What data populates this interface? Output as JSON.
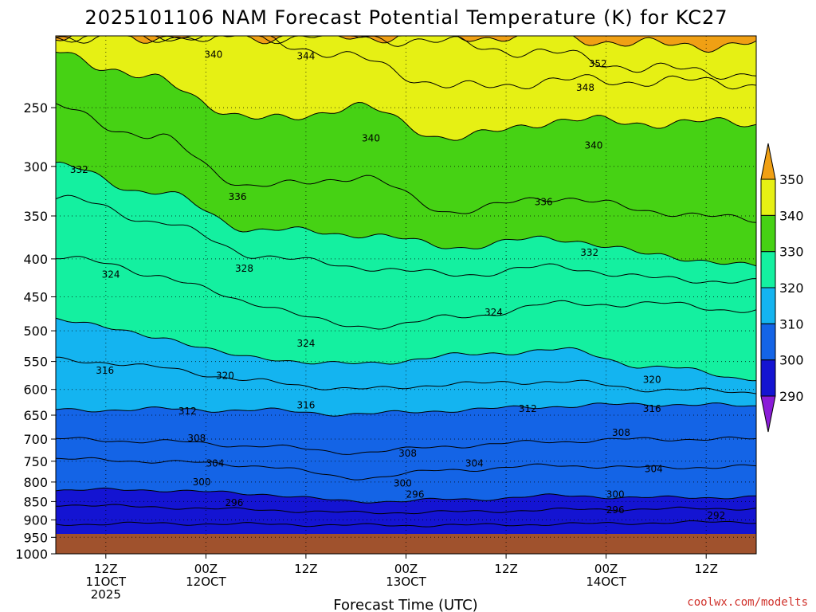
{
  "chart_data": {
    "type": "heatmap",
    "title": "2025101106 NAM Forecast Potential Temperature (K) for KC27",
    "xlabel": "Forecast Time (UTC)",
    "ylabel": "",
    "y_axis": {
      "scale": "log-pressure",
      "unit": "hPa",
      "range": [
        1000,
        200
      ],
      "ticks": [
        250,
        300,
        350,
        400,
        450,
        500,
        550,
        600,
        650,
        700,
        750,
        800,
        850,
        900,
        950,
        1000
      ]
    },
    "x_axis": {
      "unit": "hours from 2025-10-11 06Z",
      "range": [
        0,
        84
      ],
      "ticks": [
        {
          "hour": 6,
          "lines": [
            "12Z",
            "11OCT",
            "2025"
          ]
        },
        {
          "hour": 18,
          "lines": [
            "00Z",
            "12OCT"
          ]
        },
        {
          "hour": 30,
          "lines": [
            "12Z"
          ]
        },
        {
          "hour": 42,
          "lines": [
            "00Z",
            "13OCT"
          ]
        },
        {
          "hour": 54,
          "lines": [
            "12Z"
          ]
        },
        {
          "hour": 66,
          "lines": [
            "00Z",
            "14OCT"
          ]
        },
        {
          "hour": 78,
          "lines": [
            "12Z"
          ]
        }
      ]
    },
    "surface_pressure_hPa": 940,
    "colorbar": {
      "bounds": [
        290,
        300,
        310,
        320,
        330,
        340,
        350
      ],
      "tick_labels": [
        "290",
        "300",
        "310",
        "320",
        "330",
        "340",
        "350"
      ],
      "colors": [
        "#8a1cd8",
        "#1414d2",
        "#1464e6",
        "#14b4f0",
        "#14f0a0",
        "#46d214",
        "#e6f014",
        "#f0a014"
      ]
    },
    "isentrope_pressure_hPa": [
      {
        "theta": 292,
        "hours": [
          0,
          12,
          24,
          36,
          48,
          60,
          72,
          84
        ],
        "pressure": [
          912,
          910,
          912,
          915,
          915,
          912,
          908,
          905
        ]
      },
      {
        "theta": 296,
        "hours": [
          0,
          12,
          24,
          36,
          48,
          60,
          72,
          84
        ],
        "pressure": [
          858,
          865,
          872,
          880,
          878,
          872,
          870,
          868
        ]
      },
      {
        "theta": 300,
        "hours": [
          0,
          12,
          24,
          36,
          48,
          60,
          72,
          84
        ],
        "pressure": [
          820,
          820,
          830,
          850,
          845,
          835,
          840,
          838
        ]
      },
      {
        "theta": 304,
        "hours": [
          0,
          12,
          24,
          36,
          48,
          60,
          72,
          84
        ],
        "pressure": [
          745,
          750,
          760,
          790,
          770,
          760,
          765,
          762
        ]
      },
      {
        "theta": 308,
        "hours": [
          0,
          12,
          24,
          36,
          48,
          60,
          72,
          84
        ],
        "pressure": [
          700,
          705,
          715,
          730,
          715,
          705,
          700,
          700
        ]
      },
      {
        "theta": 312,
        "hours": [
          0,
          12,
          24,
          36,
          48,
          60,
          72,
          84
        ],
        "pressure": [
          640,
          638,
          640,
          648,
          640,
          632,
          628,
          632
        ]
      },
      {
        "theta": 316,
        "hours": [
          0,
          12,
          24,
          36,
          48,
          60,
          72,
          84
        ],
        "pressure": [
          545,
          560,
          585,
          600,
          590,
          585,
          600,
          605
        ]
      },
      {
        "theta": 320,
        "hours": [
          0,
          12,
          24,
          36,
          48,
          60,
          72,
          84
        ],
        "pressure": [
          480,
          510,
          545,
          555,
          540,
          530,
          560,
          580
        ]
      },
      {
        "theta": 324,
        "hours": [
          0,
          12,
          24,
          36,
          48,
          60,
          72,
          84
        ],
        "pressure": [
          395,
          420,
          460,
          495,
          480,
          460,
          460,
          470
        ]
      },
      {
        "theta": 328,
        "hours": [
          0,
          12,
          24,
          36,
          48,
          60,
          72,
          84
        ],
        "pressure": [
          330,
          355,
          395,
          410,
          420,
          410,
          425,
          430
        ]
      },
      {
        "theta": 332,
        "hours": [
          0,
          12,
          24,
          36,
          48,
          60,
          72,
          84
        ],
        "pressure": [
          300,
          325,
          365,
          370,
          385,
          375,
          395,
          410
        ]
      },
      {
        "theta": 336,
        "hours": [
          0,
          12,
          24,
          36,
          48,
          60,
          72,
          84
        ],
        "pressure": [
          250,
          275,
          320,
          310,
          345,
          330,
          345,
          355
        ]
      },
      {
        "theta": 340,
        "hours": [
          0,
          12,
          24,
          36,
          48,
          60,
          72,
          84
        ],
        "pressure": [
          210,
          230,
          260,
          250,
          275,
          260,
          262,
          262
        ]
      },
      {
        "theta": 344,
        "hours": [
          0,
          12,
          24,
          36,
          48,
          60,
          72,
          84
        ],
        "pressure": [
          200,
          200,
          200,
          215,
          235,
          230,
          230,
          232
        ]
      },
      {
        "theta": 348,
        "hours": [
          0,
          12,
          24,
          36,
          48,
          60,
          72,
          84
        ],
        "pressure": [
          200,
          200,
          200,
          200,
          205,
          212,
          222,
          225
        ]
      },
      {
        "theta": 352,
        "hours": [
          0,
          12,
          24,
          36,
          48,
          60,
          72,
          84
        ],
        "pressure": [
          200,
          200,
          200,
          200,
          200,
          200,
          206,
          205
        ]
      }
    ],
    "contour_labels": [
      {
        "text": "340",
        "hour": 18.9,
        "p": 212
      },
      {
        "text": "344",
        "hour": 30.0,
        "p": 213
      },
      {
        "text": "352",
        "hour": 65.0,
        "p": 218
      },
      {
        "text": "348",
        "hour": 63.5,
        "p": 235
      },
      {
        "text": "340",
        "hour": 37.8,
        "p": 275
      },
      {
        "text": "340",
        "hour": 64.5,
        "p": 281
      },
      {
        "text": "332",
        "hour": 2.8,
        "p": 303
      },
      {
        "text": "336",
        "hour": 21.8,
        "p": 330
      },
      {
        "text": "336",
        "hour": 58.5,
        "p": 335
      },
      {
        "text": "332",
        "hour": 64.0,
        "p": 392
      },
      {
        "text": "328",
        "hour": 22.6,
        "p": 412
      },
      {
        "text": "324",
        "hour": 6.6,
        "p": 420
      },
      {
        "text": "324",
        "hour": 52.5,
        "p": 472
      },
      {
        "text": "324",
        "hour": 30.0,
        "p": 520
      },
      {
        "text": "316",
        "hour": 5.9,
        "p": 566
      },
      {
        "text": "320",
        "hour": 20.3,
        "p": 575
      },
      {
        "text": "320",
        "hour": 71.5,
        "p": 582
      },
      {
        "text": "316",
        "hour": 30.0,
        "p": 630
      },
      {
        "text": "316",
        "hour": 71.5,
        "p": 637
      },
      {
        "text": "312",
        "hour": 15.8,
        "p": 642
      },
      {
        "text": "312",
        "hour": 56.6,
        "p": 637
      },
      {
        "text": "308",
        "hour": 67.8,
        "p": 686
      },
      {
        "text": "308",
        "hour": 16.9,
        "p": 698
      },
      {
        "text": "308",
        "hour": 42.2,
        "p": 732
      },
      {
        "text": "304",
        "hour": 50.2,
        "p": 755
      },
      {
        "text": "304",
        "hour": 19.1,
        "p": 755
      },
      {
        "text": "304",
        "hour": 71.7,
        "p": 768
      },
      {
        "text": "300",
        "hour": 17.5,
        "p": 800
      },
      {
        "text": "300",
        "hour": 41.6,
        "p": 803
      },
      {
        "text": "296",
        "hour": 43.1,
        "p": 832
      },
      {
        "text": "300",
        "hour": 67.1,
        "p": 832
      },
      {
        "text": "296",
        "hour": 21.4,
        "p": 853
      },
      {
        "text": "296",
        "hour": 67.1,
        "p": 873
      },
      {
        "text": "292",
        "hour": 79.2,
        "p": 888
      }
    ]
  },
  "credit": "coolwx.com/modelts"
}
